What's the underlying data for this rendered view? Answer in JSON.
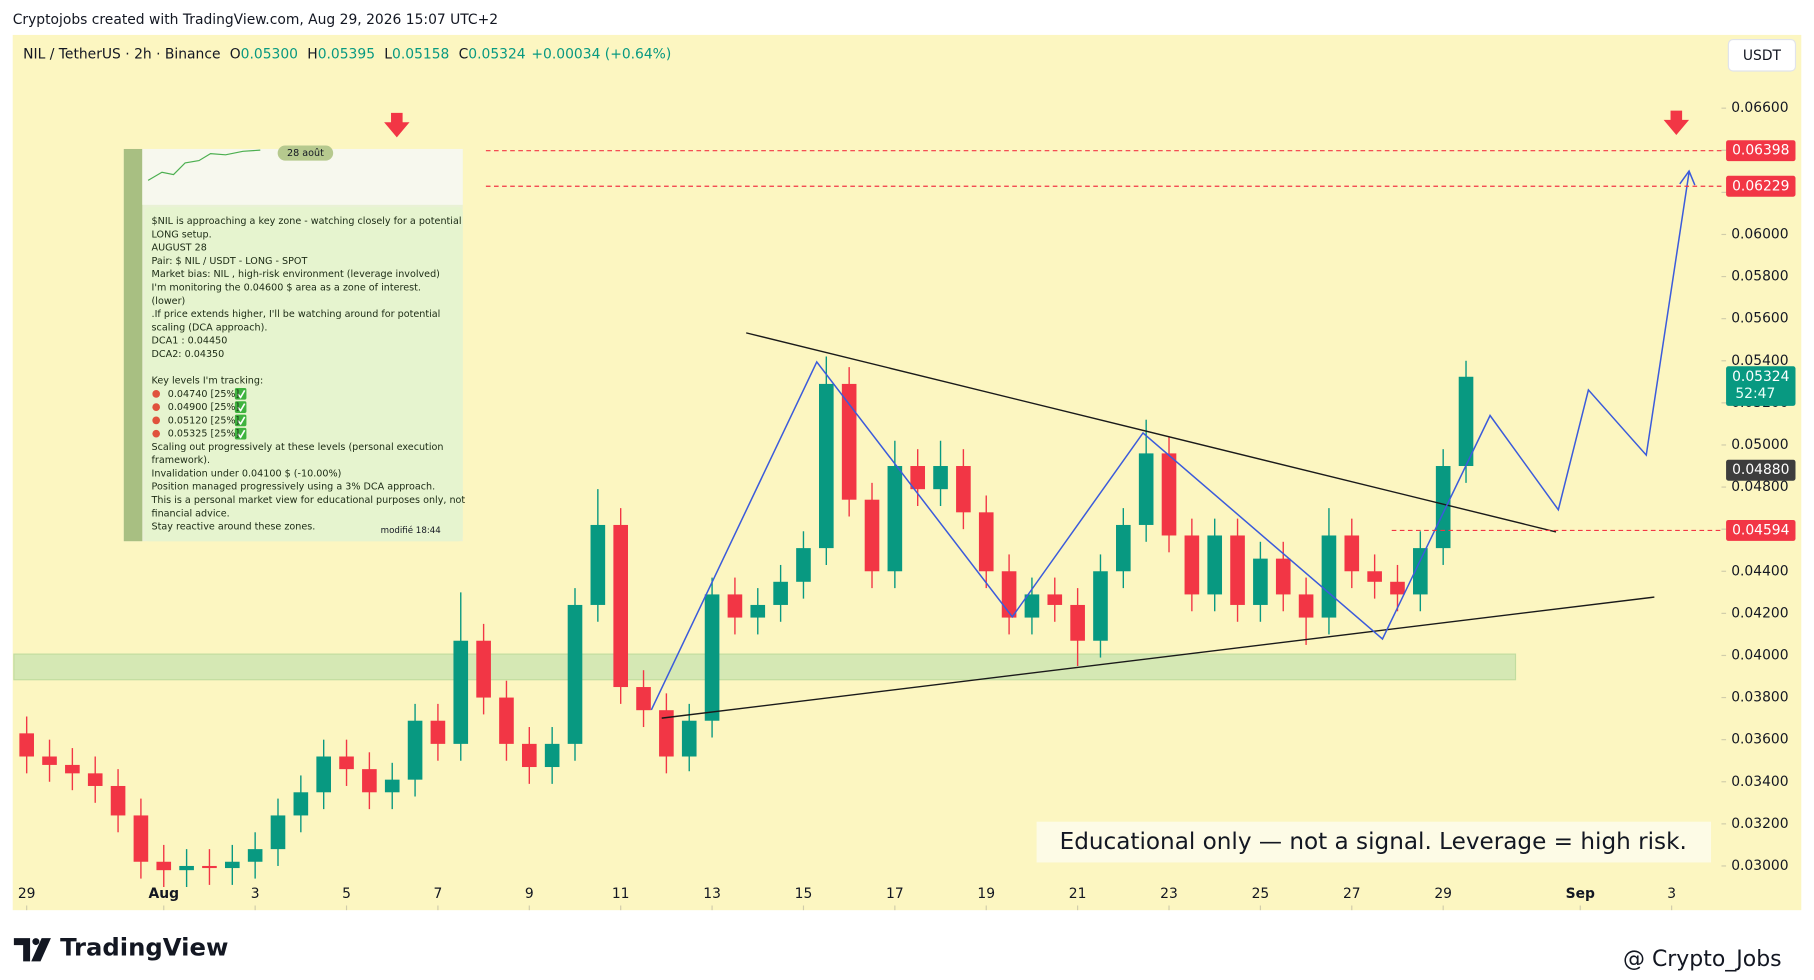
{
  "header": {
    "attribution": "Cryptojobs created with TradingView.com, Aug 29, 2026 15:07 UTC+2"
  },
  "legend": {
    "symbol": "NIL / TetherUS · 2h · Binance",
    "ohlc": [
      {
        "key": "O",
        "value": "0.05300"
      },
      {
        "key": "H",
        "value": "0.05395"
      },
      {
        "key": "L",
        "value": "0.05158"
      },
      {
        "key": "C",
        "value": "0.05324"
      }
    ],
    "change": "+0.00034 (+0.64%)"
  },
  "currency_button": "USDT",
  "annotation": "Educational only — not a signal. Leverage  = high risk.",
  "inset": {
    "date_pill": "28 août",
    "paragraphs": [
      [
        "$NIL  is approaching a key zone - watching closely for a potential",
        "LONG setup.",
        "AUGUST 28",
        "Pair: $ NIL / USDT  -  LONG -  SPOT",
        "Market bias: NIL , high-risk environment (leverage involved)",
        "I'm monitoring the 0.04600  $  area as a zone of interest.",
        "(lower)",
        ".If price extends higher, I'll be watching around for potential",
        "scaling (DCA approach).",
        "DCA1 : 0.04450",
        "DCA2:  0.04350"
      ],
      [
        "Key levels I'm tracking:",
        "0.04740  [25%]",
        "0.04900 [25%]",
        "0.05120  [25%]",
        "0.05325  [25%]",
        "Scaling out progressively at these levels (personal execution",
        "framework).",
        "Invalidation under 0.04100   $ (-10.00%)",
        "Position managed progressively using a 3% DCA approach.",
        "This is a personal market view for educational purposes only, not",
        "financial advice.",
        "Stay reactive around these zones."
      ]
    ],
    "edited": "modifié 18:44"
  },
  "footer": {
    "brand": "TradingView",
    "watermark": "@ Crypto_Jobs"
  },
  "chart_data": {
    "type": "candlestick",
    "up_color": "#089981",
    "down_color": "#f23645",
    "xlim": [
      -0.28,
      37.09
    ],
    "xticks": [
      {
        "value": 0,
        "label": "29"
      },
      {
        "value": 3,
        "label": "Aug"
      },
      {
        "value": 5,
        "label": "3"
      },
      {
        "value": 7,
        "label": "5"
      },
      {
        "value": 9,
        "label": "7"
      },
      {
        "value": 11,
        "label": "9"
      },
      {
        "value": 13,
        "label": "11"
      },
      {
        "value": 15,
        "label": "13"
      },
      {
        "value": 17,
        "label": "15"
      },
      {
        "value": 19,
        "label": "17"
      },
      {
        "value": 21,
        "label": "19"
      },
      {
        "value": 23,
        "label": "21"
      },
      {
        "value": 25,
        "label": "23"
      },
      {
        "value": 27,
        "label": "25"
      },
      {
        "value": 29,
        "label": "27"
      },
      {
        "value": 31,
        "label": "29"
      },
      {
        "value": 34,
        "label": "Sep"
      },
      {
        "value": 36,
        "label": "3"
      }
    ],
    "ylim": [
      0.0279,
      0.06948
    ],
    "yticks": [
      {
        "value": 0.03,
        "label": "0.03000"
      },
      {
        "value": 0.032,
        "label": "0.03200"
      },
      {
        "value": 0.034,
        "label": "0.03400"
      },
      {
        "value": 0.036,
        "label": "0.03600"
      },
      {
        "value": 0.038,
        "label": "0.03800"
      },
      {
        "value": 0.04,
        "label": "0.04000"
      },
      {
        "value": 0.042,
        "label": "0.04200"
      },
      {
        "value": 0.044,
        "label": "0.04400"
      },
      {
        "value": 0.046,
        "label": "0.04600"
      },
      {
        "value": 0.048,
        "label": "0.04800"
      },
      {
        "value": 0.05,
        "label": "0.05000"
      },
      {
        "value": 0.052,
        "label": "0.05200"
      },
      {
        "value": 0.054,
        "label": "0.05400"
      },
      {
        "value": 0.056,
        "label": "0.05600"
      },
      {
        "value": 0.058,
        "label": "0.05800"
      },
      {
        "value": 0.06,
        "label": "0.06000"
      },
      {
        "value": 0.062,
        "label": "0.06200"
      },
      {
        "value": 0.064,
        "label": "0.06400"
      },
      {
        "value": 0.066,
        "label": "0.06600"
      }
    ],
    "price_tags": [
      {
        "value": 0.06398,
        "label": "0.06398",
        "color": "#f23645"
      },
      {
        "value": 0.06229,
        "label": "0.06229",
        "color": "#f23645"
      },
      {
        "value": 0.05324,
        "label": "0.05324",
        "color": "#089981",
        "countdown": "52:47"
      },
      {
        "value": 0.0488,
        "label": "0.04880",
        "color": "#3d3d3d"
      },
      {
        "value": 0.04594,
        "label": "0.04594",
        "color": "#f23645"
      }
    ],
    "candles": {
      "x": [
        0,
        0.5,
        1,
        1.5,
        2,
        2.5,
        3,
        3.5,
        4,
        4.5,
        5,
        5.5,
        6,
        6.5,
        7,
        7.5,
        8,
        8.5,
        9,
        9.5,
        10,
        10.5,
        11,
        11.5,
        12,
        12.5,
        13,
        13.5,
        14,
        14.5,
        15,
        15.5,
        16,
        16.5,
        17,
        17.5,
        18,
        18.5,
        19,
        19.5,
        20,
        20.5,
        21,
        21.5,
        22,
        22.5,
        23,
        23.5,
        24,
        24.5,
        25,
        25.5,
        26,
        26.5,
        27,
        27.5,
        28,
        28.5,
        29,
        29.5,
        30,
        30.5,
        31,
        31.5
      ],
      "open": [
        0.0363,
        0.0352,
        0.0348,
        0.0344,
        0.0338,
        0.0324,
        0.0302,
        0.0298,
        0.03,
        0.0299,
        0.0302,
        0.0308,
        0.0324,
        0.0335,
        0.0352,
        0.0346,
        0.0335,
        0.0341,
        0.0369,
        0.0358,
        0.0407,
        0.038,
        0.0358,
        0.0347,
        0.0358,
        0.0424,
        0.0462,
        0.0385,
        0.0374,
        0.0352,
        0.0369,
        0.0429,
        0.0418,
        0.0424,
        0.0435,
        0.0451,
        0.0529,
        0.0474,
        0.044,
        0.049,
        0.0479,
        0.049,
        0.0468,
        0.044,
        0.0418,
        0.0429,
        0.0424,
        0.0407,
        0.044,
        0.0462,
        0.0496,
        0.0457,
        0.0429,
        0.0457,
        0.0424,
        0.0446,
        0.0429,
        0.0418,
        0.0457,
        0.044,
        0.0435,
        0.0429,
        0.0451,
        0.049
      ],
      "high": [
        0.0371,
        0.036,
        0.0356,
        0.0352,
        0.0346,
        0.0332,
        0.031,
        0.0308,
        0.0308,
        0.031,
        0.0316,
        0.0332,
        0.0343,
        0.036,
        0.036,
        0.0354,
        0.0349,
        0.0377,
        0.0377,
        0.043,
        0.0415,
        0.0388,
        0.0366,
        0.0366,
        0.0432,
        0.0479,
        0.047,
        0.0393,
        0.0382,
        0.0377,
        0.0437,
        0.0437,
        0.0432,
        0.0443,
        0.0459,
        0.0542,
        0.0537,
        0.0482,
        0.0502,
        0.0498,
        0.0502,
        0.0498,
        0.0476,
        0.0448,
        0.0437,
        0.0437,
        0.0432,
        0.0448,
        0.047,
        0.0512,
        0.0504,
        0.0465,
        0.0465,
        0.0465,
        0.0454,
        0.0454,
        0.0437,
        0.047,
        0.0465,
        0.0448,
        0.0443,
        0.0459,
        0.0498,
        0.054
      ],
      "low": [
        0.0344,
        0.034,
        0.0336,
        0.033,
        0.0316,
        0.0294,
        0.029,
        0.029,
        0.0291,
        0.0291,
        0.0294,
        0.03,
        0.0316,
        0.0327,
        0.0338,
        0.0327,
        0.0327,
        0.0333,
        0.035,
        0.035,
        0.0372,
        0.035,
        0.0339,
        0.0339,
        0.035,
        0.0416,
        0.0377,
        0.0366,
        0.0344,
        0.0345,
        0.0361,
        0.041,
        0.041,
        0.0416,
        0.0427,
        0.0443,
        0.0466,
        0.0432,
        0.0432,
        0.0471,
        0.0471,
        0.046,
        0.0432,
        0.041,
        0.041,
        0.0416,
        0.0395,
        0.0399,
        0.0432,
        0.0454,
        0.0449,
        0.0421,
        0.0421,
        0.0416,
        0.0416,
        0.0421,
        0.0405,
        0.041,
        0.0432,
        0.0427,
        0.0421,
        0.0421,
        0.0443,
        0.0482
      ],
      "close": [
        0.0352,
        0.0348,
        0.0344,
        0.0338,
        0.0324,
        0.0302,
        0.0298,
        0.03,
        0.0299,
        0.0302,
        0.0308,
        0.0324,
        0.0335,
        0.0352,
        0.0346,
        0.0335,
        0.0341,
        0.0369,
        0.0358,
        0.0407,
        0.038,
        0.0358,
        0.0347,
        0.0358,
        0.0424,
        0.0462,
        0.0385,
        0.0374,
        0.0352,
        0.0369,
        0.0429,
        0.0418,
        0.0424,
        0.0435,
        0.0451,
        0.0529,
        0.0474,
        0.044,
        0.049,
        0.0479,
        0.049,
        0.0468,
        0.044,
        0.0418,
        0.0429,
        0.0424,
        0.0407,
        0.044,
        0.0462,
        0.0496,
        0.0457,
        0.0429,
        0.0457,
        0.0424,
        0.0446,
        0.0429,
        0.0418,
        0.0457,
        0.044,
        0.0435,
        0.0429,
        0.0451,
        0.049,
        0.05324
      ]
    }
  }
}
